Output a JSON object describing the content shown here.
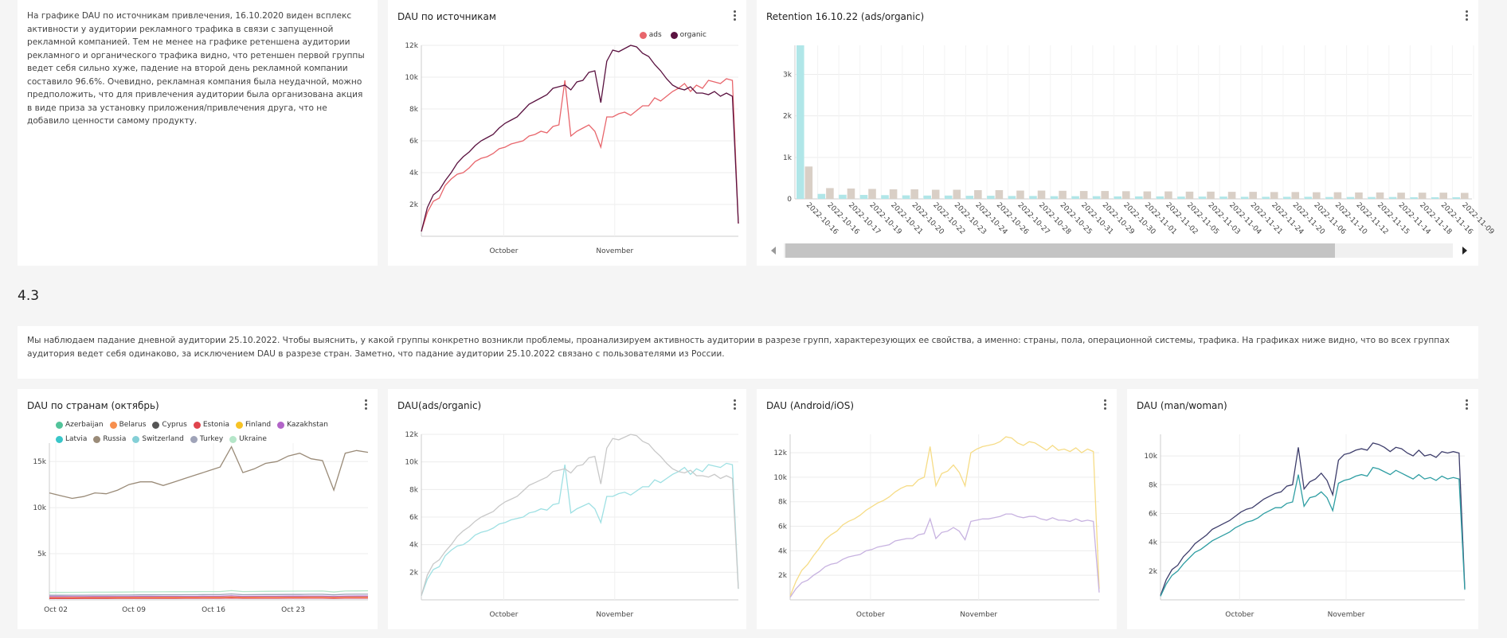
{
  "note1": "На графике DAU по источникам привлечения, 16.10.2020 виден всплекс активности у аудитории рекламного трафика в связи с запущенной рекламной компанией. Тем не менее на графике ретеншена аудитории рекламного и органического трафика видно, что ретеншен первой группы ведет себя сильно хуже, падение на второй день рекламной компании составило 96.6%. Очевидно, рекламная компания была неудачной, можно предположить, что для привлечения аудитории была организована акция в виде приза за установку приложения/привлечения друга, что не добавило ценности самому продукту.",
  "section_title": "4.3",
  "note2": "Мы наблюдаем падание дневной аудитории 25.10.2022. Чтобы выяснить, у какой группы конкретно возникли проблемы, проанализируем активность аудитории в разрезе групп, характерезующих ее свойства, а именно: страны, пола, операционной системы, трафика. На графиках ниже видно, что во всех группах аудитория ведет себя одинаково, за исключением DAU в разрезе стран. Заметно, что падание аудитории 25.10.2022 связано с пользователями из России.",
  "chart_data": [
    {
      "id": "c1",
      "type": "line",
      "title": "DAU по источникам",
      "x_ticks": [
        "October",
        "November"
      ],
      "y_ticks": [
        "2k",
        "4k",
        "6k",
        "8k",
        "10k",
        "12k"
      ],
      "ylim": [
        0,
        12000
      ],
      "legend": [
        "ads",
        "organic"
      ],
      "series": [
        {
          "name": "ads",
          "color": "#e8666c",
          "values": [
            300,
            1500,
            2200,
            2400,
            3200,
            3600,
            3900,
            4000,
            4300,
            4700,
            4900,
            5000,
            5200,
            5500,
            5600,
            5800,
            5900,
            6000,
            6300,
            6400,
            6600,
            6500,
            6900,
            7000,
            9800,
            6300,
            6600,
            6800,
            7000,
            6600,
            5600,
            7500,
            7500,
            7700,
            7800,
            7600,
            7900,
            8200,
            8200,
            8700,
            8500,
            8800,
            9100,
            9300,
            9600,
            9100,
            9500,
            9300,
            9800,
            9700,
            9600,
            9900,
            9800,
            800
          ]
        },
        {
          "name": "organic",
          "color": "#5a1240",
          "values": [
            300,
            1800,
            2600,
            2900,
            3500,
            4000,
            4600,
            5000,
            5300,
            5700,
            6000,
            6200,
            6400,
            6800,
            7100,
            7300,
            7500,
            7900,
            8300,
            8500,
            8700,
            8900,
            9300,
            9400,
            9500,
            9200,
            9700,
            9800,
            10300,
            10400,
            8400,
            11000,
            11700,
            11600,
            11800,
            12000,
            11900,
            11500,
            11300,
            10800,
            10400,
            9900,
            9500,
            9300,
            9200,
            9400,
            9000,
            9000,
            8900,
            9100,
            8800,
            9000,
            8800,
            800
          ]
        }
      ]
    },
    {
      "id": "c2",
      "type": "bar",
      "title": "Retention 16.10.22 (ads/organic)",
      "y_ticks": [
        "0",
        "1k",
        "2k",
        "3k"
      ],
      "ylim": [
        0,
        3700
      ],
      "categories": [
        "2022-10-16",
        "2022-10-16",
        "2022-10-17",
        "2022-10-19",
        "2022-10-21",
        "2022-10-20",
        "2022-10-22",
        "2022-10-23",
        "2022-10-24",
        "2022-10-26",
        "2022-10-27",
        "2022-10-28",
        "2022-10-25",
        "2022-10-31",
        "2022-10-29",
        "2022-10-30",
        "2022-11-01",
        "2022-11-02",
        "2022-11-05",
        "2022-11-03",
        "2022-11-04",
        "2022-11-21",
        "2022-11-24",
        "2022-11-20",
        "2022-11-06",
        "2022-11-10",
        "2022-11-12",
        "2022-11-15",
        "2022-11-14",
        "2022-11-18",
        "2022-11-16",
        "2022-11-09"
      ],
      "series": [
        {
          "name": "ads",
          "color": "#b0e6e8",
          "values": [
            3700,
            120,
            100,
            95,
            90,
            85,
            80,
            80,
            75,
            75,
            70,
            70,
            65,
            65,
            65,
            60,
            60,
            60,
            55,
            55,
            55,
            50,
            50,
            50,
            50,
            45,
            45,
            45,
            45,
            40,
            40,
            40
          ]
        },
        {
          "name": "organic",
          "color": "#d9cfc6",
          "values": [
            780,
            260,
            250,
            240,
            230,
            230,
            220,
            220,
            210,
            210,
            200,
            200,
            195,
            190,
            190,
            185,
            180,
            180,
            175,
            175,
            170,
            170,
            165,
            165,
            160,
            160,
            155,
            155,
            150,
            150,
            150,
            145
          ]
        }
      ]
    },
    {
      "id": "c3",
      "type": "line",
      "title": "DAU по странам (октябрь)",
      "x_ticks": [
        "Oct 02",
        "Oct 09",
        "Oct 16",
        "Oct 23"
      ],
      "y_ticks": [
        "5k",
        "10k",
        "15k"
      ],
      "ylim": [
        0,
        17000
      ],
      "legend": [
        "Azerbaijan",
        "Belarus",
        "Cyprus",
        "Estonia",
        "Finland",
        "Kazakhstan",
        "Latvia",
        "Russia",
        "Switzerland",
        "Turkey",
        "Ukraine"
      ],
      "legend_colors": [
        "#52c39a",
        "#f78f4e",
        "#555555",
        "#e0444d",
        "#f7c325",
        "#b264c8",
        "#39c6c9",
        "#9a8b78",
        "#84cfd6",
        "#9fa3b8",
        "#b5e6c9"
      ],
      "series": [
        {
          "name": "Russia",
          "color": "#9a8b78",
          "values": [
            11600,
            11300,
            11000,
            11200,
            11600,
            11500,
            11900,
            12500,
            12800,
            12800,
            12400,
            12800,
            13200,
            13600,
            14000,
            14400,
            16600,
            13800,
            14200,
            14800,
            15000,
            15600,
            15900,
            15300,
            15100,
            11900,
            15900,
            16200,
            16000
          ]
        },
        {
          "name": "Ukraine",
          "color": "#b5e6c9",
          "values": [
            800,
            800,
            810,
            820,
            830,
            830,
            840,
            850,
            860,
            860,
            870,
            880,
            880,
            890,
            900,
            900,
            1000,
            900,
            910,
            920,
            930,
            940,
            950,
            950,
            960,
            850,
            960,
            970,
            980
          ]
        },
        {
          "name": "Turkey",
          "color": "#9fa3b8",
          "values": [
            500,
            500,
            510,
            510,
            520,
            520,
            530,
            530,
            540,
            540,
            550,
            550,
            560,
            560,
            570,
            570,
            640,
            560,
            570,
            580,
            580,
            590,
            590,
            600,
            600,
            540,
            600,
            610,
            610
          ]
        },
        {
          "name": "Kazakhstan",
          "color": "#b264c8",
          "values": [
            350,
            350,
            355,
            355,
            360,
            360,
            365,
            365,
            370,
            370,
            375,
            375,
            380,
            380,
            385,
            385,
            430,
            380,
            385,
            390,
            390,
            395,
            395,
            400,
            400,
            360,
            400,
            405,
            405
          ]
        },
        {
          "name": "Belarus",
          "color": "#f78f4e",
          "values": [
            250,
            250,
            255,
            255,
            260,
            260,
            265,
            265,
            270,
            270,
            275,
            275,
            280,
            280,
            285,
            285,
            320,
            280,
            285,
            290,
            290,
            295,
            295,
            300,
            300,
            270,
            300,
            305,
            305
          ]
        },
        {
          "name": "Estonia",
          "color": "#e0444d",
          "values": [
            150,
            150,
            150,
            155,
            155,
            155,
            160,
            160,
            160,
            165,
            165,
            165,
            170,
            170,
            170,
            175,
            200,
            170,
            175,
            175,
            175,
            180,
            180,
            180,
            185,
            160,
            185,
            185,
            185
          ]
        }
      ]
    },
    {
      "id": "c4",
      "type": "line",
      "title": "DAU(ads/organic)",
      "x_ticks": [
        "October",
        "November"
      ],
      "y_ticks": [
        "2k",
        "4k",
        "6k",
        "8k",
        "10k",
        "12k"
      ],
      "ylim": [
        0,
        12000
      ],
      "series": [
        {
          "name": "ads",
          "color": "#9ee0e3",
          "values": [
            300,
            1500,
            2200,
            2400,
            3200,
            3600,
            3900,
            4000,
            4300,
            4700,
            4900,
            5000,
            5200,
            5500,
            5600,
            5800,
            5900,
            6000,
            6300,
            6400,
            6600,
            6500,
            6900,
            7000,
            9800,
            6300,
            6600,
            6800,
            7000,
            6600,
            5600,
            7500,
            7500,
            7700,
            7800,
            7600,
            7900,
            8200,
            8200,
            8700,
            8500,
            8800,
            9100,
            9300,
            9600,
            9100,
            9500,
            9300,
            9800,
            9700,
            9600,
            9900,
            9800,
            800
          ]
        },
        {
          "name": "organic",
          "color": "#c8c8c8",
          "values": [
            300,
            1800,
            2600,
            2900,
            3500,
            4000,
            4600,
            5000,
            5300,
            5700,
            6000,
            6200,
            6400,
            6800,
            7100,
            7300,
            7500,
            7900,
            8300,
            8500,
            8700,
            8900,
            9300,
            9400,
            9500,
            9200,
            9700,
            9800,
            10300,
            10400,
            8400,
            11000,
            11700,
            11600,
            11800,
            12000,
            11900,
            11500,
            11300,
            10800,
            10400,
            9900,
            9500,
            9300,
            9200,
            9400,
            9000,
            9000,
            8900,
            9100,
            8800,
            9000,
            8800,
            800
          ]
        }
      ]
    },
    {
      "id": "c5",
      "type": "line",
      "title": "DAU (Android/iOS)",
      "x_ticks": [
        "October",
        "November"
      ],
      "y_ticks": [
        "2k",
        "4k",
        "6k",
        "8k",
        "10k",
        "12k"
      ],
      "ylim": [
        0,
        13500
      ],
      "series": [
        {
          "name": "Android",
          "color": "#f6dc86",
          "values": [
            300,
            1500,
            2400,
            2900,
            3600,
            4200,
            4900,
            5300,
            5600,
            6100,
            6400,
            6600,
            6900,
            7300,
            7600,
            7900,
            8100,
            8400,
            8800,
            9100,
            9300,
            9300,
            9800,
            10000,
            12500,
            9300,
            10300,
            10500,
            11000,
            10400,
            9300,
            12000,
            12300,
            12500,
            12600,
            12700,
            12900,
            13300,
            13200,
            12800,
            12600,
            12900,
            12800,
            12500,
            12200,
            12600,
            12200,
            12300,
            12100,
            12400,
            12000,
            12300,
            12100,
            900
          ]
        },
        {
          "name": "iOS",
          "color": "#c7b2e0",
          "values": [
            200,
            900,
            1400,
            1600,
            2000,
            2300,
            2700,
            2900,
            3000,
            3300,
            3500,
            3600,
            3700,
            4000,
            4100,
            4300,
            4400,
            4500,
            4800,
            4900,
            5000,
            5000,
            5300,
            5400,
            6600,
            5000,
            5500,
            5600,
            5900,
            5600,
            4900,
            6400,
            6500,
            6600,
            6600,
            6700,
            6800,
            7000,
            7000,
            6800,
            6700,
            6800,
            6800,
            6600,
            6500,
            6700,
            6500,
            6500,
            6400,
            6600,
            6400,
            6500,
            6400,
            600
          ]
        }
      ]
    },
    {
      "id": "c6",
      "type": "line",
      "title": "DAU (man/woman)",
      "x_ticks": [
        "October",
        "November"
      ],
      "y_ticks": [
        "2k",
        "4k",
        "6k",
        "8k",
        "10k"
      ],
      "ylim": [
        0,
        11500
      ],
      "series": [
        {
          "name": "man",
          "color": "#3d3d6b",
          "values": [
            300,
            1400,
            2100,
            2400,
            3000,
            3400,
            3900,
            4200,
            4500,
            4900,
            5100,
            5300,
            5500,
            5800,
            6100,
            6300,
            6400,
            6700,
            7000,
            7200,
            7400,
            7500,
            7900,
            8000,
            10600,
            7700,
            8200,
            8400,
            8800,
            8300,
            7300,
            9700,
            10100,
            10200,
            10400,
            10500,
            10400,
            10900,
            10800,
            10600,
            10300,
            10600,
            10500,
            10200,
            10000,
            10400,
            10000,
            10100,
            9900,
            10300,
            10200,
            10300,
            10200,
            800
          ]
        },
        {
          "name": "woman",
          "color": "#2f9ea3",
          "values": [
            250,
            1100,
            1700,
            2000,
            2500,
            2900,
            3300,
            3500,
            3800,
            4100,
            4300,
            4500,
            4700,
            5000,
            5200,
            5400,
            5500,
            5700,
            6000,
            6200,
            6400,
            6400,
            6700,
            6800,
            8700,
            6500,
            7100,
            7200,
            7500,
            7100,
            6200,
            8100,
            8300,
            8400,
            8600,
            8700,
            8600,
            9200,
            9100,
            8900,
            8700,
            9000,
            8800,
            8600,
            8400,
            8700,
            8400,
            8500,
            8300,
            8600,
            8400,
            8500,
            8400,
            700
          ]
        }
      ]
    }
  ]
}
